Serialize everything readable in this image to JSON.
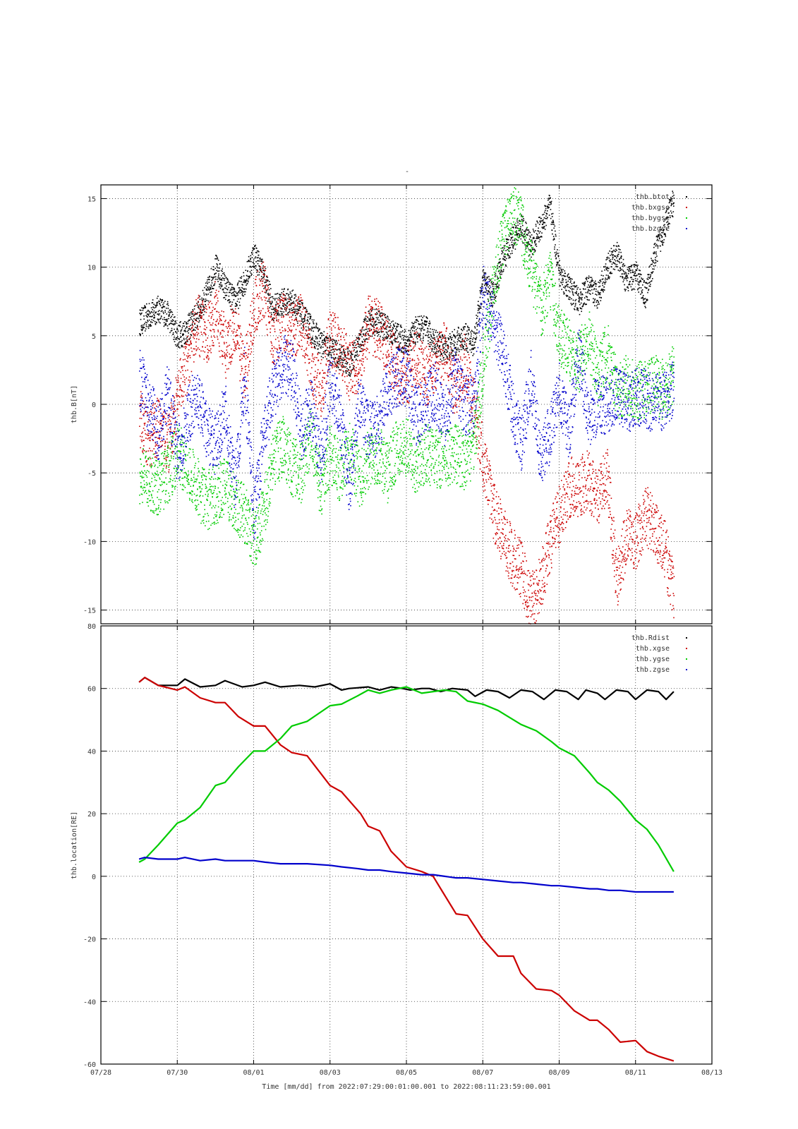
{
  "top_marker": "-",
  "time_caption": "Time [mm/dd]  from 2022:07:29:00:01:00.001  to  2022:08:11:23:59:00.001",
  "colors": {
    "black": "#000000",
    "red": "#cc0000",
    "green": "#00cc00",
    "blue": "#0000cc"
  },
  "x_ticks": [
    "07/28",
    "07/30",
    "08/01",
    "08/03",
    "08/05",
    "08/07",
    "08/09",
    "08/11",
    "08/13"
  ],
  "chart_data": [
    {
      "type": "scatter",
      "ylabel": "thb.B[nT]",
      "xlim": [
        0,
        16
      ],
      "ylim": [
        -16,
        16
      ],
      "y_ticks": [
        15,
        10,
        5,
        0,
        -5,
        -10,
        -15
      ],
      "grid": true,
      "legend_position": "top-right",
      "series": [
        {
          "name": "thb.btot",
          "color": "#000000",
          "x": [
            1.0,
            1.25,
            1.5,
            1.75,
            2.0,
            2.25,
            2.5,
            2.75,
            3.0,
            3.25,
            3.5,
            3.75,
            4.0,
            4.25,
            4.5,
            4.75,
            5.0,
            5.25,
            5.5,
            5.75,
            6.0,
            6.25,
            6.5,
            6.75,
            7.0,
            7.25,
            7.5,
            7.75,
            8.0,
            8.25,
            8.5,
            8.75,
            9.0,
            9.25,
            9.5,
            9.75,
            10.0,
            10.25,
            10.5,
            10.75,
            11.0,
            11.25,
            11.5,
            11.75,
            12.0,
            12.25,
            12.5,
            12.75,
            13.0,
            13.25,
            13.5,
            13.75,
            14.0,
            14.25,
            14.5,
            14.75,
            15.0
          ],
          "y": [
            6.0,
            6.5,
            7.0,
            6.5,
            5.0,
            5.5,
            6.5,
            8.0,
            10.0,
            8.5,
            7.5,
            9.0,
            11.0,
            9.5,
            7.0,
            7.5,
            7.5,
            6.5,
            5.5,
            4.5,
            4.0,
            3.5,
            3.0,
            4.5,
            6.0,
            6.0,
            5.5,
            5.0,
            4.5,
            5.5,
            5.5,
            4.5,
            4.0,
            4.5,
            5.0,
            4.5,
            9.0,
            8.0,
            10.5,
            12.0,
            13.0,
            11.5,
            13.0,
            14.5,
            9.5,
            8.5,
            7.5,
            8.5,
            8.0,
            10.0,
            11.0,
            9.0,
            9.5,
            8.0,
            11.0,
            13.0,
            15.0
          ]
        },
        {
          "name": "thb.bxgse",
          "color": "#cc0000",
          "x": [
            1.0,
            1.25,
            1.5,
            1.75,
            2.0,
            2.25,
            2.5,
            2.75,
            3.0,
            3.25,
            3.5,
            3.75,
            4.0,
            4.25,
            4.5,
            4.75,
            5.0,
            5.25,
            5.5,
            5.75,
            6.0,
            6.25,
            6.5,
            6.75,
            7.0,
            7.25,
            7.5,
            7.75,
            8.0,
            8.25,
            8.5,
            8.75,
            9.0,
            9.25,
            9.5,
            9.75,
            10.0,
            10.25,
            10.5,
            10.75,
            11.0,
            11.25,
            11.5,
            11.75,
            12.0,
            12.25,
            12.5,
            12.75,
            13.0,
            13.25,
            13.5,
            13.75,
            14.0,
            14.25,
            14.5,
            14.75,
            15.0
          ],
          "y": [
            -1.0,
            -2.5,
            -1.5,
            -3.0,
            0.5,
            3.0,
            6.0,
            5.0,
            7.0,
            4.0,
            6.0,
            2.0,
            7.0,
            8.5,
            5.0,
            6.0,
            5.5,
            6.0,
            3.0,
            1.0,
            5.0,
            4.0,
            2.5,
            3.0,
            6.0,
            5.5,
            4.0,
            2.5,
            2.0,
            3.5,
            2.0,
            3.0,
            4.0,
            1.0,
            3.0,
            0.0,
            -4.0,
            -7.5,
            -9.5,
            -11.0,
            -12.0,
            -14.5,
            -13.0,
            -10.0,
            -8.0,
            -6.0,
            -6.0,
            -5.5,
            -7.0,
            -5.0,
            -13.0,
            -9.5,
            -10.0,
            -8.0,
            -9.0,
            -10.5,
            -14.0
          ]
        },
        {
          "name": "thb.bygse",
          "color": "#00cc00",
          "x": [
            1.0,
            1.25,
            1.5,
            1.75,
            2.0,
            2.25,
            2.5,
            2.75,
            3.0,
            3.25,
            3.5,
            3.75,
            4.0,
            4.25,
            4.5,
            4.75,
            5.0,
            5.25,
            5.5,
            5.75,
            6.0,
            6.25,
            6.5,
            6.75,
            7.0,
            7.25,
            7.5,
            7.75,
            8.0,
            8.25,
            8.5,
            8.75,
            9.0,
            9.25,
            9.5,
            9.75,
            10.0,
            10.25,
            10.5,
            10.75,
            11.0,
            11.25,
            11.5,
            11.75,
            12.0,
            12.25,
            12.5,
            12.75,
            13.0,
            13.25,
            13.5,
            13.75,
            14.0,
            14.25,
            14.5,
            14.75,
            15.0
          ],
          "y": [
            -5.0,
            -5.5,
            -6.0,
            -5.0,
            -3.5,
            -4.5,
            -6.0,
            -7.0,
            -6.5,
            -6.0,
            -7.0,
            -8.0,
            -10.0,
            -8.0,
            -4.0,
            -3.0,
            -4.5,
            -5.0,
            -2.0,
            -6.5,
            -3.5,
            -5.0,
            -3.0,
            -5.5,
            -4.0,
            -3.5,
            -5.0,
            -3.0,
            -3.0,
            -4.5,
            -3.5,
            -4.0,
            -4.0,
            -3.5,
            -4.0,
            -3.0,
            3.0,
            8.0,
            12.0,
            14.0,
            13.0,
            10.0,
            7.0,
            9.0,
            5.0,
            4.0,
            3.0,
            5.0,
            2.0,
            4.0,
            1.0,
            1.5,
            1.0,
            1.0,
            1.5,
            1.0,
            2.5
          ]
        },
        {
          "name": "thb.bzgse",
          "color": "#0000cc",
          "x": [
            1.0,
            1.25,
            1.5,
            1.75,
            2.0,
            2.25,
            2.5,
            2.75,
            3.0,
            3.25,
            3.5,
            3.75,
            4.0,
            4.25,
            4.5,
            4.75,
            5.0,
            5.25,
            5.5,
            5.75,
            6.0,
            6.25,
            6.5,
            6.75,
            7.0,
            7.25,
            7.5,
            7.75,
            8.0,
            8.25,
            8.5,
            8.75,
            9.0,
            9.25,
            9.5,
            9.75,
            10.0,
            10.25,
            10.5,
            10.75,
            11.0,
            11.25,
            11.5,
            11.75,
            12.0,
            12.25,
            12.5,
            12.75,
            13.0,
            13.25,
            13.5,
            13.75,
            14.0,
            14.25,
            14.5,
            14.75,
            15.0
          ],
          "y": [
            2.0,
            0.0,
            -2.0,
            1.0,
            -4.0,
            -1.0,
            1.0,
            -2.0,
            -3.0,
            0.0,
            -6.0,
            2.0,
            -8.0,
            -2.0,
            1.0,
            3.0,
            2.5,
            -2.0,
            0.0,
            -4.0,
            2.0,
            -1.0,
            -6.0,
            0.0,
            -2.0,
            -1.5,
            1.0,
            2.0,
            2.0,
            -1.0,
            0.0,
            1.0,
            -1.0,
            2.0,
            0.0,
            0.0,
            8.0,
            6.0,
            4.0,
            0.0,
            -3.0,
            2.0,
            -4.0,
            -2.0,
            1.0,
            -2.0,
            4.0,
            -1.0,
            0.0,
            0.0,
            1.0,
            0.0,
            0.5,
            0.5,
            0.0,
            0.5,
            1.0
          ]
        }
      ]
    },
    {
      "type": "line",
      "ylabel": "thb.location[RE]",
      "xlim": [
        0,
        16
      ],
      "ylim": [
        -60,
        80
      ],
      "y_ticks": [
        80,
        60,
        40,
        20,
        0,
        -20,
        -40,
        -60
      ],
      "grid": true,
      "legend_position": "top-right",
      "series": [
        {
          "name": "thb.Rdist",
          "color": "#000000",
          "x": [
            1.0,
            1.15,
            1.5,
            2.0,
            2.2,
            2.6,
            3.0,
            3.25,
            3.7,
            4.0,
            4.3,
            4.7,
            5.2,
            5.6,
            6.0,
            6.3,
            6.5,
            7.0,
            7.3,
            7.6,
            7.9,
            8.1,
            8.4,
            8.6,
            8.9,
            9.2,
            9.6,
            9.8,
            10.1,
            10.4,
            10.7,
            11.0,
            11.3,
            11.6,
            11.9,
            12.2,
            12.5,
            12.7,
            13.0,
            13.2,
            13.5,
            13.8,
            14.0,
            14.3,
            14.6,
            14.8,
            15.0
          ],
          "y": [
            62,
            63.5,
            61,
            61,
            63,
            60.5,
            61,
            62.5,
            60.5,
            61,
            62,
            60.5,
            61,
            60.5,
            61.5,
            59.5,
            60,
            60.5,
            59.5,
            60.5,
            60,
            59.5,
            60,
            60,
            59,
            60,
            59.5,
            57.5,
            59.5,
            59,
            57,
            59.5,
            59,
            56.5,
            59.5,
            59,
            56.5,
            59.5,
            58.5,
            56.5,
            59.5,
            59,
            56.5,
            59.5,
            59,
            56.5,
            59
          ]
        },
        {
          "name": "thb.xgse",
          "color": "#cc0000",
          "x": [
            1.0,
            1.15,
            1.5,
            2.0,
            2.2,
            2.6,
            3.0,
            3.25,
            3.6,
            4.0,
            4.3,
            4.7,
            5.0,
            5.4,
            6.0,
            6.3,
            6.8,
            7.0,
            7.3,
            7.6,
            8.0,
            8.4,
            8.7,
            9.0,
            9.3,
            9.6,
            10.0,
            10.4,
            10.8,
            11.0,
            11.4,
            11.8,
            12.0,
            12.4,
            12.8,
            13.0,
            13.3,
            13.6,
            14.0,
            14.3,
            14.6,
            15.0
          ],
          "y": [
            62,
            63.5,
            61,
            59.5,
            60.5,
            57,
            55.5,
            55.5,
            51,
            48,
            48,
            42,
            39.5,
            38.5,
            29,
            27,
            20,
            16,
            14.5,
            8,
            3,
            1.5,
            0,
            -6,
            -12,
            -12.5,
            -20,
            -25.5,
            -25.5,
            -31,
            -36,
            -36.5,
            -38,
            -43,
            -46,
            -46,
            -49,
            -53,
            -52.5,
            -56,
            -57.5,
            -59
          ]
        },
        {
          "name": "thb.ygse",
          "color": "#00cc00",
          "x": [
            1.0,
            1.15,
            1.5,
            2.0,
            2.2,
            2.6,
            3.0,
            3.25,
            3.6,
            4.0,
            4.3,
            4.7,
            5.0,
            5.4,
            6.0,
            6.3,
            6.7,
            7.0,
            7.3,
            7.6,
            8.0,
            8.4,
            8.7,
            9.0,
            9.3,
            9.6,
            10.0,
            10.4,
            10.8,
            11.0,
            11.4,
            11.8,
            12.0,
            12.4,
            12.8,
            13.0,
            13.3,
            13.6,
            14.0,
            14.3,
            14.6,
            15.0
          ],
          "y": [
            4.5,
            5.5,
            10,
            17,
            18,
            22,
            29,
            30,
            35,
            40,
            40,
            44,
            48,
            49.5,
            54.5,
            55,
            57.5,
            59.5,
            58.5,
            59.5,
            60.5,
            58.5,
            59,
            59.5,
            59,
            56,
            55,
            53,
            50,
            48.5,
            46.5,
            43,
            41,
            38.5,
            33,
            30,
            27.5,
            24,
            18,
            15,
            10,
            1.5
          ]
        },
        {
          "name": "thb.zgse",
          "color": "#0000cc",
          "x": [
            1.0,
            1.15,
            1.5,
            2.0,
            2.2,
            2.6,
            3.0,
            3.25,
            3.6,
            4.0,
            4.3,
            4.7,
            5.0,
            5.4,
            6.0,
            6.3,
            6.7,
            7.0,
            7.3,
            7.6,
            8.0,
            8.4,
            8.7,
            9.0,
            9.3,
            9.6,
            10.0,
            10.4,
            10.8,
            11.0,
            11.4,
            11.8,
            12.0,
            12.4,
            12.8,
            13.0,
            13.3,
            13.6,
            14.0,
            14.3,
            14.6,
            15.0
          ],
          "y": [
            5.5,
            6,
            5.5,
            5.5,
            6,
            5,
            5.5,
            5,
            5,
            5,
            4.5,
            4,
            4,
            4,
            3.5,
            3,
            2.5,
            2,
            2,
            1.5,
            1,
            0.5,
            0.5,
            0,
            -0.5,
            -0.5,
            -1,
            -1.5,
            -2,
            -2,
            -2.5,
            -3,
            -3,
            -3.5,
            -4,
            -4,
            -4.5,
            -4.5,
            -5,
            -5,
            -5,
            -5
          ]
        }
      ]
    }
  ]
}
